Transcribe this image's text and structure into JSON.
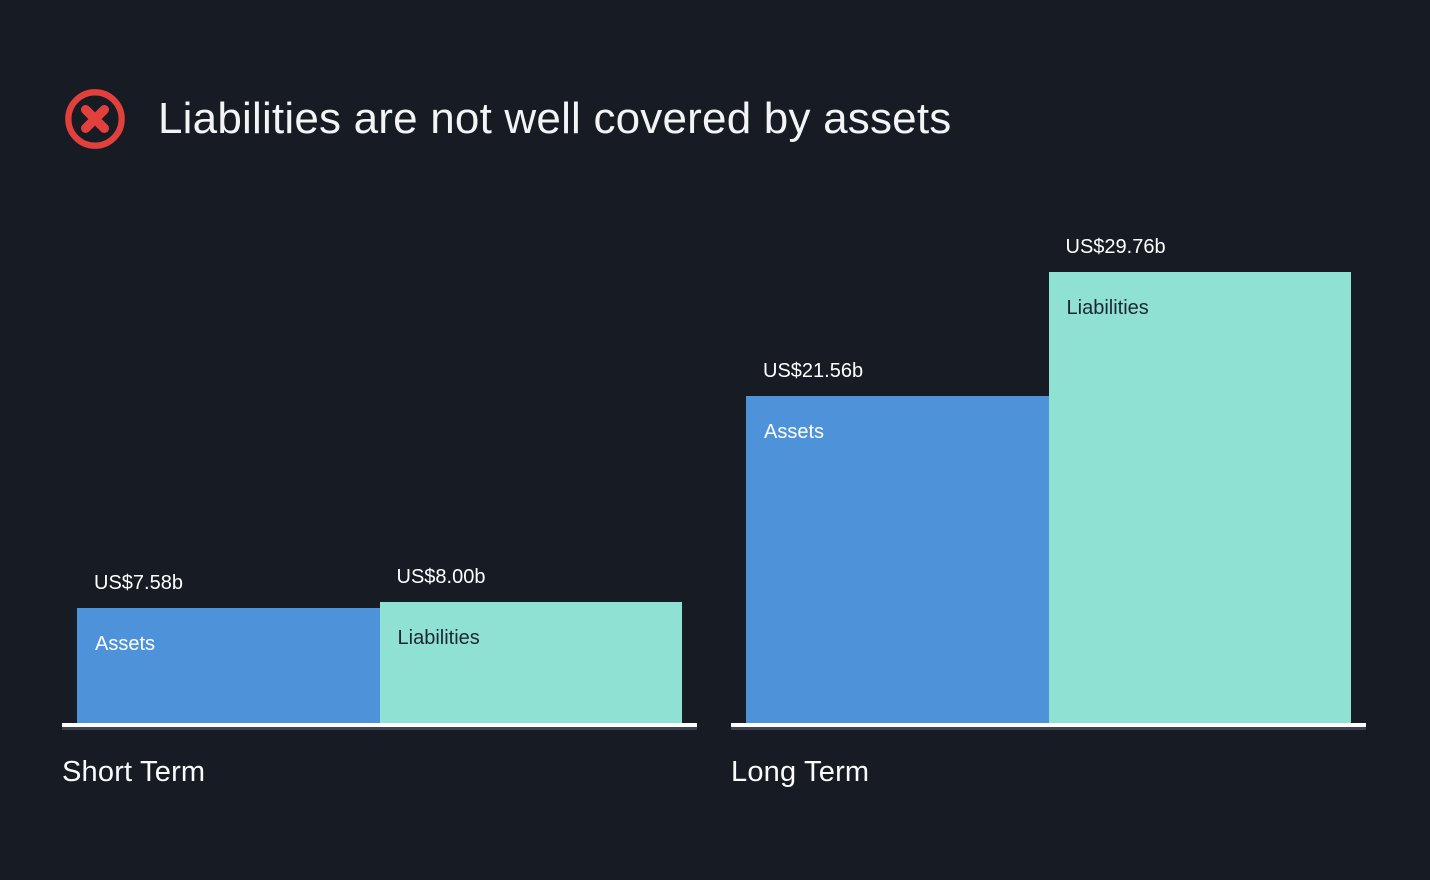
{
  "header": {
    "title": "Liabilities are not well covered by assets",
    "status_icon": "error-cross-icon"
  },
  "colors": {
    "background": "#161b24",
    "status_red": "#e2403d",
    "assets_bar": "#4e93d9",
    "liabilities_bar": "#8fe1d3",
    "label_on_assets": "#ffffff",
    "label_on_liabilities": "#1d2733",
    "value_label": "#ffffff",
    "baseline": "#fdfeff"
  },
  "chart_data": {
    "type": "bar",
    "title": "Liabilities are not well covered by assets",
    "unit_prefix": "US$",
    "unit_suffix": "b",
    "ylim": [
      0,
      30
    ],
    "grid": false,
    "legend": "labels-inside-bars",
    "groups": [
      {
        "label": "Short Term",
        "bars": [
          {
            "name": "Assets",
            "value": 7.58,
            "value_label": "US$7.58b"
          },
          {
            "name": "Liabilities",
            "value": 8.0,
            "value_label": "US$8.00b"
          }
        ]
      },
      {
        "label": "Long Term",
        "bars": [
          {
            "name": "Assets",
            "value": 21.56,
            "value_label": "US$21.56b"
          },
          {
            "name": "Liabilities",
            "value": 29.76,
            "value_label": "US$29.76b"
          }
        ]
      }
    ]
  }
}
